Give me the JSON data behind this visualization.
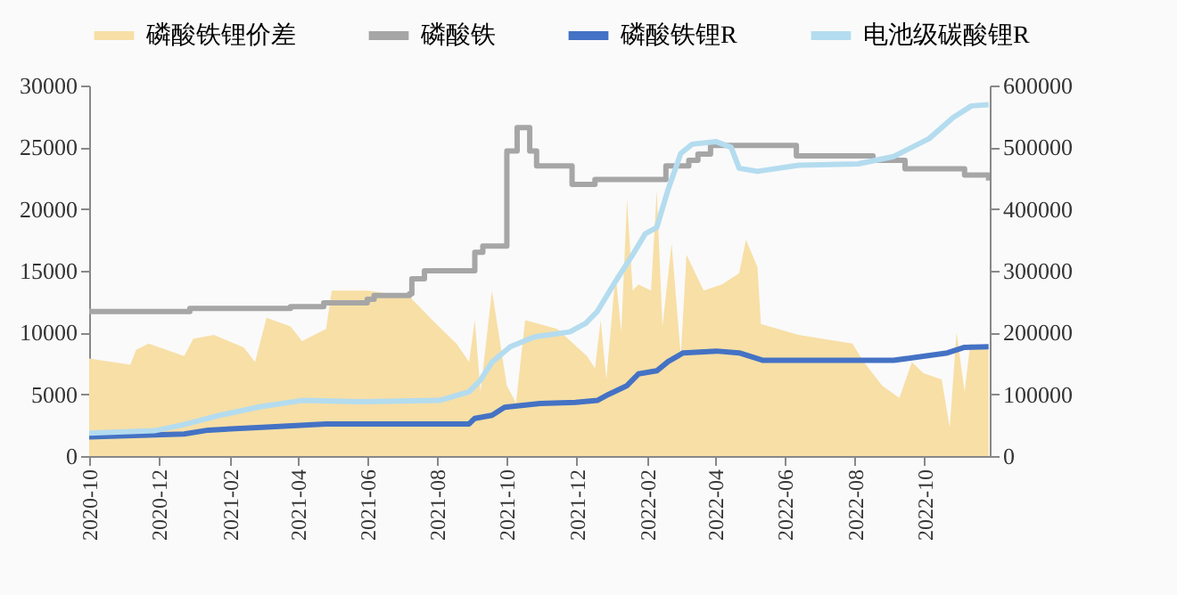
{
  "chart_data": {
    "type": "line",
    "legend": "top",
    "grid": false,
    "marker": "none",
    "xlim": [
      "2020-10-01",
      "2022-11-27"
    ],
    "xticks": [
      "2020-10",
      "2020-12",
      "2021-02",
      "2021-04",
      "2021-06",
      "2021-08",
      "2021-10",
      "2021-12",
      "2022-02",
      "2022-04",
      "2022-06",
      "2022-08",
      "2022-10"
    ],
    "ylim": [
      0,
      30000
    ],
    "yticks": [
      0,
      5000,
      10000,
      15000,
      20000,
      25000,
      30000
    ],
    "y2lim": [
      0,
      600000
    ],
    "y2ticks": [
      0,
      100000,
      200000,
      300000,
      400000,
      500000,
      600000
    ],
    "series": [
      {
        "name": "磷酸铁锂价差",
        "type": "area",
        "color": "#f7dfa6",
        "x": [
          "2020-10-01",
          "2020-11-06",
          "2020-11-11",
          "2020-11-22",
          "2020-12-23",
          "2020-12-31",
          "2021-01-18",
          "2021-02-13",
          "2021-02-23",
          "2021-03-05",
          "2021-03-26",
          "2021-04-05",
          "2021-04-26",
          "2021-05-01",
          "2021-06-01",
          "2021-07-08",
          "2021-07-28",
          "2021-08-18",
          "2021-08-29",
          "2021-09-03",
          "2021-09-08",
          "2021-09-18",
          "2021-10-01",
          "2021-10-09",
          "2021-10-17",
          "2021-11-14",
          "2021-12-10",
          "2021-12-17",
          "2021-12-22",
          "2021-12-27",
          "2022-01-04",
          "2022-01-09",
          "2022-01-14",
          "2022-01-19",
          "2022-01-24",
          "2022-02-04",
          "2022-02-09",
          "2022-02-14",
          "2022-02-22",
          "2022-03-02",
          "2022-03-07",
          "2022-03-22",
          "2022-04-07",
          "2022-04-22",
          "2022-04-28",
          "2022-05-08",
          "2022-05-11",
          "2022-06-13",
          "2022-07-30",
          "2022-08-09",
          "2022-08-25",
          "2022-09-09",
          "2022-09-20",
          "2022-09-30",
          "2022-10-16",
          "2022-10-23",
          "2022-10-29",
          "2022-11-05",
          "2022-11-10",
          "2022-11-26"
        ],
        "values": [
          7900,
          7400,
          8600,
          9100,
          8100,
          9500,
          9800,
          8800,
          7600,
          11200,
          10500,
          9300,
          10300,
          13400,
          13400,
          12900,
          11000,
          9100,
          7600,
          11000,
          5200,
          13400,
          5700,
          4300,
          11000,
          10300,
          8100,
          7100,
          11000,
          6200,
          14800,
          10000,
          20800,
          13400,
          13900,
          13400,
          21500,
          10500,
          17200,
          8100,
          16300,
          13400,
          13900,
          14800,
          17500,
          15300,
          10700,
          9800,
          9100,
          7600,
          5700,
          4700,
          7600,
          6700,
          6200,
          2300,
          10000,
          5200,
          9100,
          8600
        ]
      },
      {
        "name": "磷酸铁",
        "type": "step",
        "color": "#a6a6a6",
        "x": [
          "2020-10-01",
          "2020-12-28",
          "2021-03-26",
          "2021-04-24",
          "2021-06-01",
          "2021-06-07",
          "2021-07-08",
          "2021-07-10",
          "2021-07-21",
          "2021-09-03",
          "2021-09-10",
          "2021-10-01",
          "2021-10-10",
          "2021-10-21",
          "2021-10-27",
          "2021-11-27",
          "2021-12-17",
          "2022-02-17",
          "2022-03-09",
          "2022-03-17",
          "2022-03-28",
          "2022-06-11",
          "2022-08-17",
          "2022-09-14",
          "2022-11-05",
          "2022-11-26"
        ],
        "values": [
          11700,
          11950,
          12100,
          12400,
          12700,
          13000,
          13150,
          14350,
          15000,
          16500,
          17000,
          24700,
          26600,
          24700,
          23500,
          22000,
          22400,
          23500,
          23950,
          24450,
          25150,
          24300,
          23950,
          23250,
          22750,
          22300
        ]
      },
      {
        "name": "磷酸铁锂R",
        "type": "line",
        "color": "#4472c4",
        "x": [
          "2020-10-01",
          "2020-12-23",
          "2021-01-13",
          "2021-03-05",
          "2021-04-26",
          "2021-08-29",
          "2021-09-03",
          "2021-09-18",
          "2021-09-29",
          "2021-10-30",
          "2021-11-30",
          "2021-12-19",
          "2021-12-29",
          "2022-01-14",
          "2022-01-24",
          "2022-02-09",
          "2022-02-19",
          "2022-03-04",
          "2022-04-02",
          "2022-04-22",
          "2022-05-13",
          "2022-08-04",
          "2022-09-04",
          "2022-09-20",
          "2022-10-21",
          "2022-11-05",
          "2022-11-26"
        ],
        "values": [
          1550,
          1780,
          2100,
          2350,
          2600,
          2600,
          3050,
          3300,
          3950,
          4250,
          4350,
          4500,
          5000,
          5700,
          6650,
          6900,
          7650,
          8350,
          8500,
          8350,
          7750,
          7750,
          7750,
          7950,
          8350,
          8800,
          8850
        ]
      },
      {
        "name": "电池级碳酸锂R",
        "type": "line",
        "axis": "y2",
        "color": "#b4dcef",
        "x": [
          "2020-10-01",
          "2020-11-27",
          "2020-12-23",
          "2021-01-23",
          "2021-02-28",
          "2021-04-05",
          "2021-05-27",
          "2021-08-03",
          "2021-08-29",
          "2021-09-08",
          "2021-09-18",
          "2021-10-04",
          "2021-10-25",
          "2021-11-25",
          "2021-12-09",
          "2021-12-19",
          "2022-01-04",
          "2022-01-19",
          "2022-01-30",
          "2022-02-09",
          "2022-02-19",
          "2022-03-02",
          "2022-03-12",
          "2022-04-02",
          "2022-04-15",
          "2022-04-22",
          "2022-05-08",
          "2022-06-13",
          "2022-08-04",
          "2022-09-04",
          "2022-10-05",
          "2022-10-26",
          "2022-11-11",
          "2022-11-26"
        ],
        "values": [
          37000,
          41000,
          51000,
          66000,
          80000,
          90000,
          88000,
          90000,
          104000,
          123000,
          152000,
          177000,
          193000,
          201000,
          215000,
          234000,
          283000,
          326000,
          360000,
          370000,
          432000,
          490000,
          505000,
          509000,
          500000,
          466000,
          461000,
          471000,
          473000,
          485000,
          514000,
          548000,
          567000,
          569000
        ]
      }
    ]
  }
}
